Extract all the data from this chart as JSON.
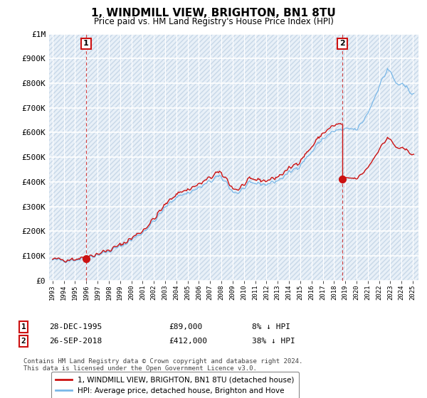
{
  "title": "1, WINDMILL VIEW, BRIGHTON, BN1 8TU",
  "subtitle": "Price paid vs. HM Land Registry's House Price Index (HPI)",
  "hpi_label": "HPI: Average price, detached house, Brighton and Hove",
  "price_label": "1, WINDMILL VIEW, BRIGHTON, BN1 8TU (detached house)",
  "footer": "Contains HM Land Registry data © Crown copyright and database right 2024.\nThis data is licensed under the Open Government Licence v3.0.",
  "ylim": [
    0,
    1000000
  ],
  "yticks": [
    0,
    100000,
    200000,
    300000,
    400000,
    500000,
    600000,
    700000,
    800000,
    900000,
    1000000
  ],
  "ytick_labels": [
    "£0",
    "£100K",
    "£200K",
    "£300K",
    "£400K",
    "£500K",
    "£600K",
    "£700K",
    "£800K",
    "£900K",
    "£1M"
  ],
  "hpi_color": "#7ab8e8",
  "price_color": "#cc1111",
  "point1_x": 1995.98,
  "point1_y": 89000,
  "point2_x": 2018.73,
  "point2_y": 412000,
  "xlim_left": 1992.7,
  "xlim_right": 2025.5,
  "bg_color": "#dce8f5",
  "plot_bg_color": "#e8f0f8"
}
